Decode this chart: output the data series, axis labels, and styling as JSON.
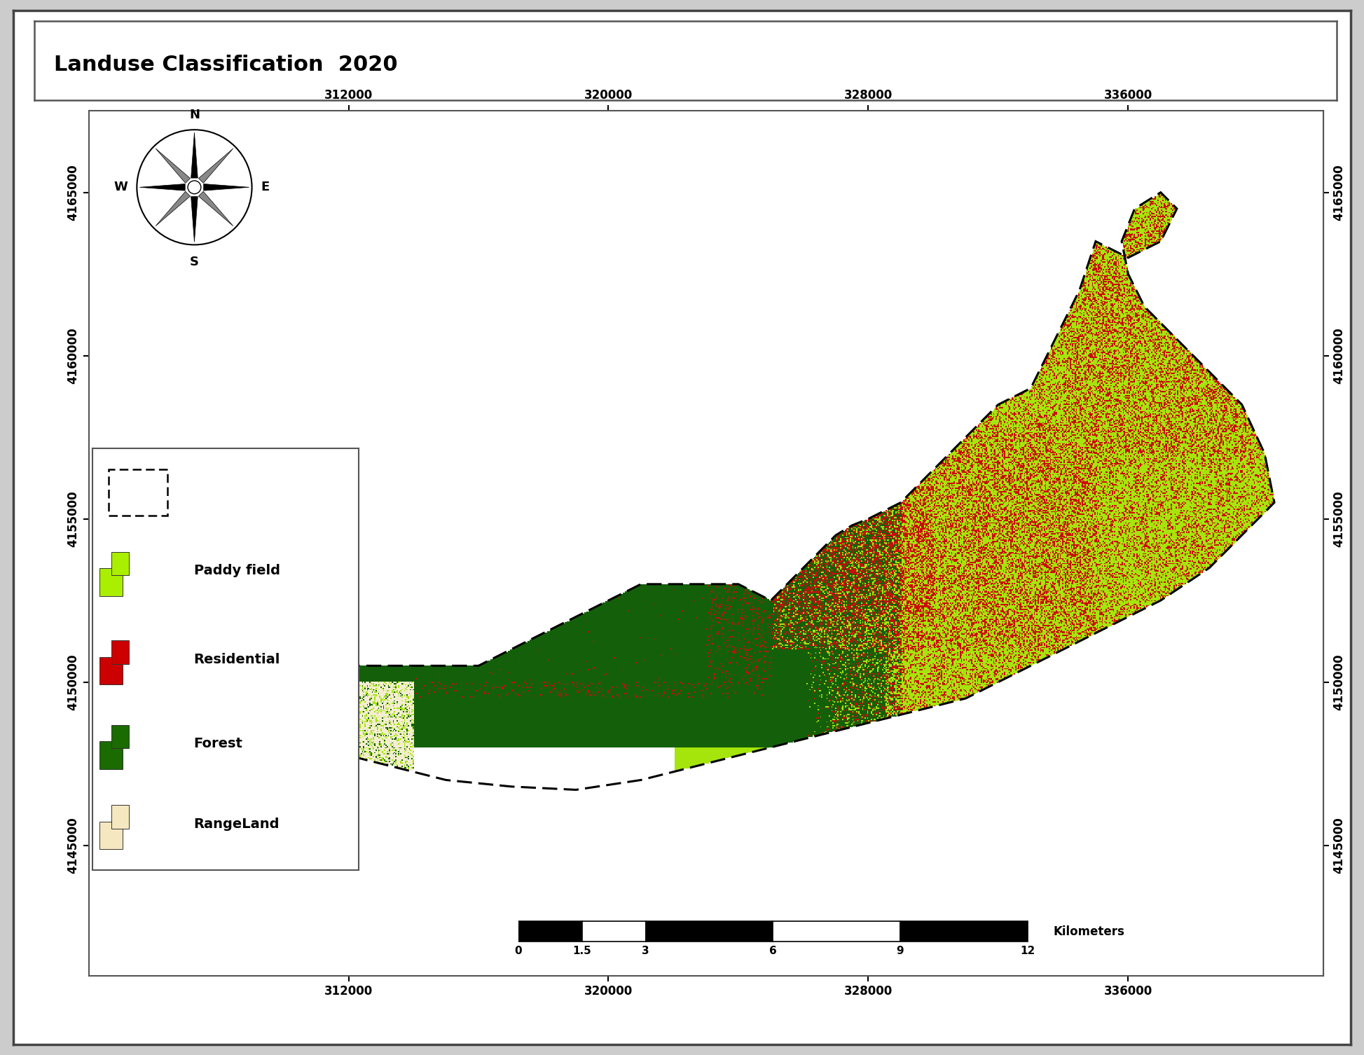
{
  "title": "Landuse Classification  2020",
  "title_fontsize": 22,
  "map_extent": [
    304000,
    342000,
    4141000,
    4167500
  ],
  "xticks": [
    312000,
    320000,
    328000,
    336000
  ],
  "yticks": [
    4145000,
    4150000,
    4155000,
    4160000,
    4165000
  ],
  "legend_items": [
    {
      "label": "Paddy field",
      "color": "#AAEE00"
    },
    {
      "label": "Residential",
      "color": "#CC0000"
    },
    {
      "label": "Forest",
      "color": "#1A6B00"
    },
    {
      "label": "RangeLand",
      "color": "#F5E8C0"
    }
  ],
  "forest_color": [
    0.08,
    0.38,
    0.04
  ],
  "paddy_color": [
    0.65,
    0.9,
    0.05
  ],
  "residential_color": [
    0.8,
    0.05,
    0.05
  ],
  "rangeland_color": [
    0.96,
    0.93,
    0.82
  ],
  "outside_color": [
    1.0,
    1.0,
    1.0
  ],
  "boundary_color": "#000000",
  "bg_color": "#FFFFFF",
  "outer_bg": "#CCCCCC"
}
